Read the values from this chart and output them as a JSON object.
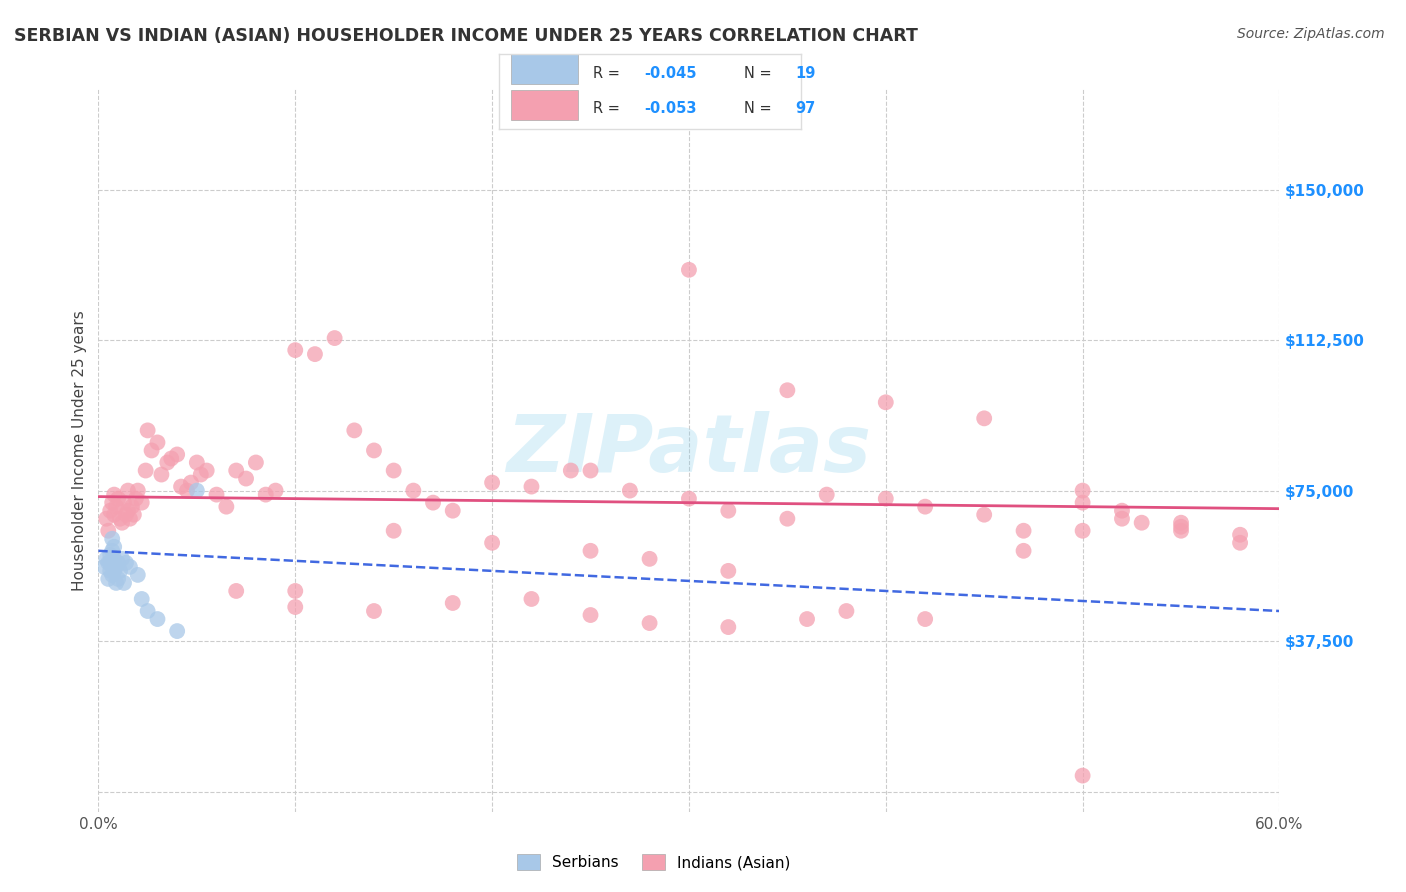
{
  "title": "SERBIAN VS INDIAN (ASIAN) HOUSEHOLDER INCOME UNDER 25 YEARS CORRELATION CHART",
  "source": "Source: ZipAtlas.com",
  "ylabel": "Householder Income Under 25 years",
  "xlim": [
    0.0,
    0.6
  ],
  "ylim": [
    -5000,
    175000
  ],
  "ytick_vals": [
    0,
    37500,
    75000,
    112500,
    150000
  ],
  "ytick_labels": [
    "",
    "$37,500",
    "$75,000",
    "$112,500",
    "$150,000"
  ],
  "xticks": [
    0.0,
    0.1,
    0.2,
    0.3,
    0.4,
    0.5,
    0.6
  ],
  "watermark": "ZIPatlas",
  "serbian_color": "#A8C8E8",
  "indian_color": "#F4A0B0",
  "serbian_line_color": "#4169E1",
  "indian_line_color": "#E05080",
  "label_color": "#1E90FF",
  "background_color": "#FFFFFF",
  "grid_color": "#CCCCCC",
  "title_color": "#333333",
  "serbian_points_x": [
    0.003,
    0.004,
    0.005,
    0.005,
    0.006,
    0.006,
    0.006,
    0.007,
    0.007,
    0.007,
    0.007,
    0.008,
    0.008,
    0.008,
    0.009,
    0.009,
    0.01,
    0.01,
    0.011,
    0.012,
    0.013,
    0.014,
    0.016,
    0.02,
    0.022,
    0.025,
    0.03,
    0.04,
    0.05
  ],
  "serbian_points_y": [
    56000,
    58000,
    53000,
    57000,
    55000,
    57000,
    59000,
    54000,
    57000,
    60000,
    63000,
    55000,
    58000,
    61000,
    52000,
    56000,
    53000,
    57000,
    55000,
    58000,
    52000,
    57000,
    56000,
    54000,
    48000,
    45000,
    43000,
    40000,
    75000
  ],
  "indian_points_x": [
    0.004,
    0.005,
    0.006,
    0.007,
    0.008,
    0.008,
    0.009,
    0.01,
    0.011,
    0.012,
    0.013,
    0.014,
    0.015,
    0.015,
    0.016,
    0.017,
    0.018,
    0.019,
    0.02,
    0.022,
    0.024,
    0.025,
    0.027,
    0.03,
    0.032,
    0.035,
    0.037,
    0.04,
    0.042,
    0.045,
    0.047,
    0.05,
    0.052,
    0.055,
    0.06,
    0.065,
    0.07,
    0.075,
    0.08,
    0.085,
    0.09,
    0.1,
    0.11,
    0.12,
    0.13,
    0.14,
    0.15,
    0.16,
    0.17,
    0.18,
    0.2,
    0.22,
    0.24,
    0.25,
    0.27,
    0.3,
    0.32,
    0.35,
    0.37,
    0.4,
    0.42,
    0.45,
    0.47,
    0.5,
    0.52,
    0.55,
    0.58,
    0.3,
    0.35,
    0.4,
    0.45,
    0.5,
    0.55,
    0.1,
    0.15,
    0.2,
    0.25,
    0.5,
    0.28,
    0.32,
    0.38,
    0.42,
    0.53,
    0.07,
    0.1,
    0.14,
    0.18,
    0.22,
    0.25,
    0.28,
    0.32,
    0.36,
    0.58,
    0.55,
    0.5,
    0.52,
    0.47
  ],
  "indian_points_y": [
    68000,
    65000,
    70000,
    72000,
    69000,
    74000,
    71000,
    73000,
    68000,
    67000,
    72000,
    69000,
    70000,
    75000,
    68000,
    71000,
    69000,
    73000,
    75000,
    72000,
    80000,
    90000,
    85000,
    87000,
    79000,
    82000,
    83000,
    84000,
    76000,
    75000,
    77000,
    82000,
    79000,
    80000,
    74000,
    71000,
    80000,
    78000,
    82000,
    74000,
    75000,
    110000,
    109000,
    113000,
    90000,
    85000,
    80000,
    75000,
    72000,
    70000,
    77000,
    76000,
    80000,
    80000,
    75000,
    73000,
    70000,
    68000,
    74000,
    73000,
    71000,
    69000,
    65000,
    72000,
    70000,
    66000,
    64000,
    130000,
    100000,
    97000,
    93000,
    75000,
    67000,
    50000,
    65000,
    62000,
    60000,
    4000,
    58000,
    55000,
    45000,
    43000,
    67000,
    50000,
    46000,
    45000,
    47000,
    48000,
    44000,
    42000,
    41000,
    43000,
    62000,
    65000,
    65000,
    68000,
    60000
  ],
  "serbian_trend_x": [
    0.0,
    0.6
  ],
  "serbian_trend_y": [
    60000,
    45000
  ],
  "indian_trend_x": [
    0.0,
    0.6
  ],
  "indian_trend_y": [
    73500,
    70500
  ]
}
